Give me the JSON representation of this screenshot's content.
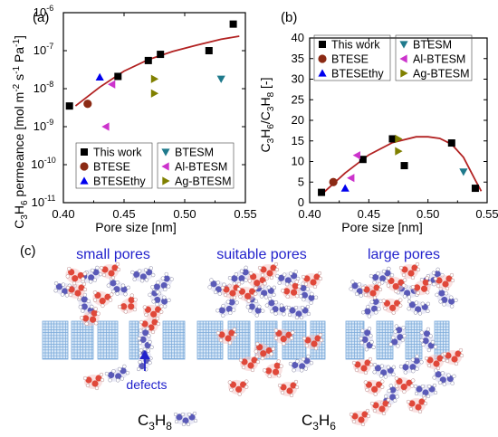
{
  "panel_labels": {
    "a": "(a)",
    "b": "(b)",
    "c": "(c)"
  },
  "chart_data": [
    {
      "type": "scatter",
      "panel": "(a)",
      "xlabel": "Pore size [nm]",
      "ylabel": "C3H6 permeance [mol m-2 s-1 Pa-1]",
      "ylabel_parts": {
        "c": "C",
        "c_sub": "3",
        "h": "H",
        "h_sub": "6",
        "rest": " permeance [mol m",
        "s1": "-2",
        "s": " s",
        "s2": "-1",
        "pa": " Pa",
        "s3": "-1",
        "end": "]"
      },
      "xlim": [
        0.4,
        0.55
      ],
      "ylim_log": [
        1e-11,
        1e-06
      ],
      "y_scale": "log",
      "x_ticks": [
        "0.40",
        "0.45",
        "0.50",
        "0.55"
      ],
      "y_ticks": [
        {
          "base": "10",
          "exp": "-11",
          "v": -11
        },
        {
          "base": "10",
          "exp": "-10",
          "v": -10
        },
        {
          "base": "10",
          "exp": "-9",
          "v": -9
        },
        {
          "base": "10",
          "exp": "-8",
          "v": -8
        },
        {
          "base": "10",
          "exp": "-7",
          "v": -7
        },
        {
          "base": "10",
          "exp": "-6",
          "v": -6
        }
      ],
      "legend": [
        "This work",
        "BTESE",
        "BTESEthy",
        "BTESM",
        "Al-BTESM",
        "Ag-BTESM"
      ],
      "series": [
        {
          "name": "This work",
          "marker": "square",
          "color": "#000000",
          "points": [
            [
              0.405,
              3.5e-09
            ],
            [
              0.445,
              2.1e-08
            ],
            [
              0.47,
              5.5e-08
            ],
            [
              0.48,
              8e-08
            ],
            [
              0.52,
              1e-07
            ],
            [
              0.54,
              5e-07
            ]
          ]
        },
        {
          "name": "BTESE",
          "marker": "circle",
          "color": "#8b2a14",
          "points": [
            [
              0.42,
              4e-09
            ]
          ]
        },
        {
          "name": "BTESEthy",
          "marker": "triangle-up",
          "color": "#0000ee",
          "points": [
            [
              0.43,
              2e-08
            ]
          ]
        },
        {
          "name": "BTESM",
          "marker": "triangle-down",
          "color": "#1f7a8c",
          "points": [
            [
              0.53,
              1.8e-08
            ]
          ]
        },
        {
          "name": "Al-BTESM",
          "marker": "triangle-left",
          "color": "#cc33cc",
          "points": [
            [
              0.435,
              1e-09
            ],
            [
              0.44,
              1.3e-08
            ]
          ]
        },
        {
          "name": "Ag-BTESM",
          "marker": "triangle-right",
          "color": "#808000",
          "points": [
            [
              0.475,
              7.5e-09
            ],
            [
              0.475,
              1.8e-08
            ]
          ]
        }
      ],
      "fit_curve": {
        "color": "#b22222",
        "points": [
          [
            0.41,
            3.5e-09
          ],
          [
            0.43,
            1.1e-08
          ],
          [
            0.45,
            2.9e-08
          ],
          [
            0.47,
            5.8e-08
          ],
          [
            0.49,
            9.5e-08
          ],
          [
            0.51,
            1.4e-07
          ],
          [
            0.53,
            2e-07
          ],
          [
            0.545,
            2.4e-07
          ]
        ]
      }
    },
    {
      "type": "scatter",
      "panel": "(b)",
      "xlabel": "Pore size [nm]",
      "ylabel": "C3H6/C3H8 [-]",
      "ylabel_parts": {
        "a": "C",
        "a_sub": "3",
        "b": "H",
        "b_sub": "6",
        "c": "/C",
        "c_sub": "3",
        "d": "H",
        "d_sub": "8",
        "end": " [-]"
      },
      "xlim": [
        0.4,
        0.55
      ],
      "ylim": [
        0,
        40
      ],
      "x_ticks": [
        "0.40",
        "0.45",
        "0.50",
        "0.55"
      ],
      "y_ticks": [
        "0",
        "5",
        "10",
        "15",
        "20",
        "25",
        "30",
        "35",
        "40"
      ],
      "legend": [
        "This work",
        "BTESE",
        "BTESEthy",
        "BTESM",
        "Al-BTESM",
        "Ag-BTESM"
      ],
      "series": [
        {
          "name": "This work",
          "marker": "square",
          "color": "#000000",
          "points": [
            [
              0.41,
              2.5
            ],
            [
              0.445,
              10.5
            ],
            [
              0.47,
              15.5
            ],
            [
              0.48,
              9.0
            ],
            [
              0.52,
              14.5
            ],
            [
              0.54,
              3.5
            ]
          ]
        },
        {
          "name": "BTESE",
          "marker": "circle",
          "color": "#8b2a14",
          "points": [
            [
              0.42,
              5.0
            ]
          ]
        },
        {
          "name": "BTESEthy",
          "marker": "triangle-up",
          "color": "#0000ee",
          "points": [
            [
              0.43,
              3.5
            ]
          ]
        },
        {
          "name": "BTESM",
          "marker": "triangle-down",
          "color": "#1f7a8c",
          "points": [
            [
              0.53,
              7.5
            ]
          ]
        },
        {
          "name": "Al-BTESM",
          "marker": "triangle-left",
          "color": "#cc33cc",
          "points": [
            [
              0.435,
              6.0
            ],
            [
              0.44,
              11.5
            ]
          ]
        },
        {
          "name": "Ag-BTESM",
          "marker": "triangle-right",
          "color": "#808000",
          "points": [
            [
              0.475,
              12.5
            ],
            [
              0.475,
              15.5
            ]
          ]
        }
      ],
      "fit_curve": {
        "color": "#b22222",
        "points": [
          [
            0.41,
            2.0
          ],
          [
            0.43,
            7.2
          ],
          [
            0.45,
            11.6
          ],
          [
            0.47,
            14.6
          ],
          [
            0.49,
            16.0
          ],
          [
            0.5,
            16.0
          ],
          [
            0.51,
            15.6
          ],
          [
            0.52,
            14.2
          ],
          [
            0.53,
            11.0
          ],
          [
            0.54,
            5.5
          ],
          [
            0.545,
            2.8
          ]
        ]
      }
    }
  ],
  "diagram": {
    "panel": "(c)",
    "titles": [
      "small pores",
      "suitable pores",
      "large pores"
    ],
    "title_color": "#2222cc",
    "defects_label": "defects",
    "molecules": {
      "c3h8": {
        "c": "C",
        "c_sub": "3",
        "h": "H",
        "h_sub": "8",
        "color": "#5a5ab8"
      },
      "c3h6": {
        "c": "C",
        "c_sub": "3",
        "h": "H",
        "h_sub": "6",
        "color": "#e0483a"
      }
    },
    "membrane_color": "#79a8d9"
  }
}
